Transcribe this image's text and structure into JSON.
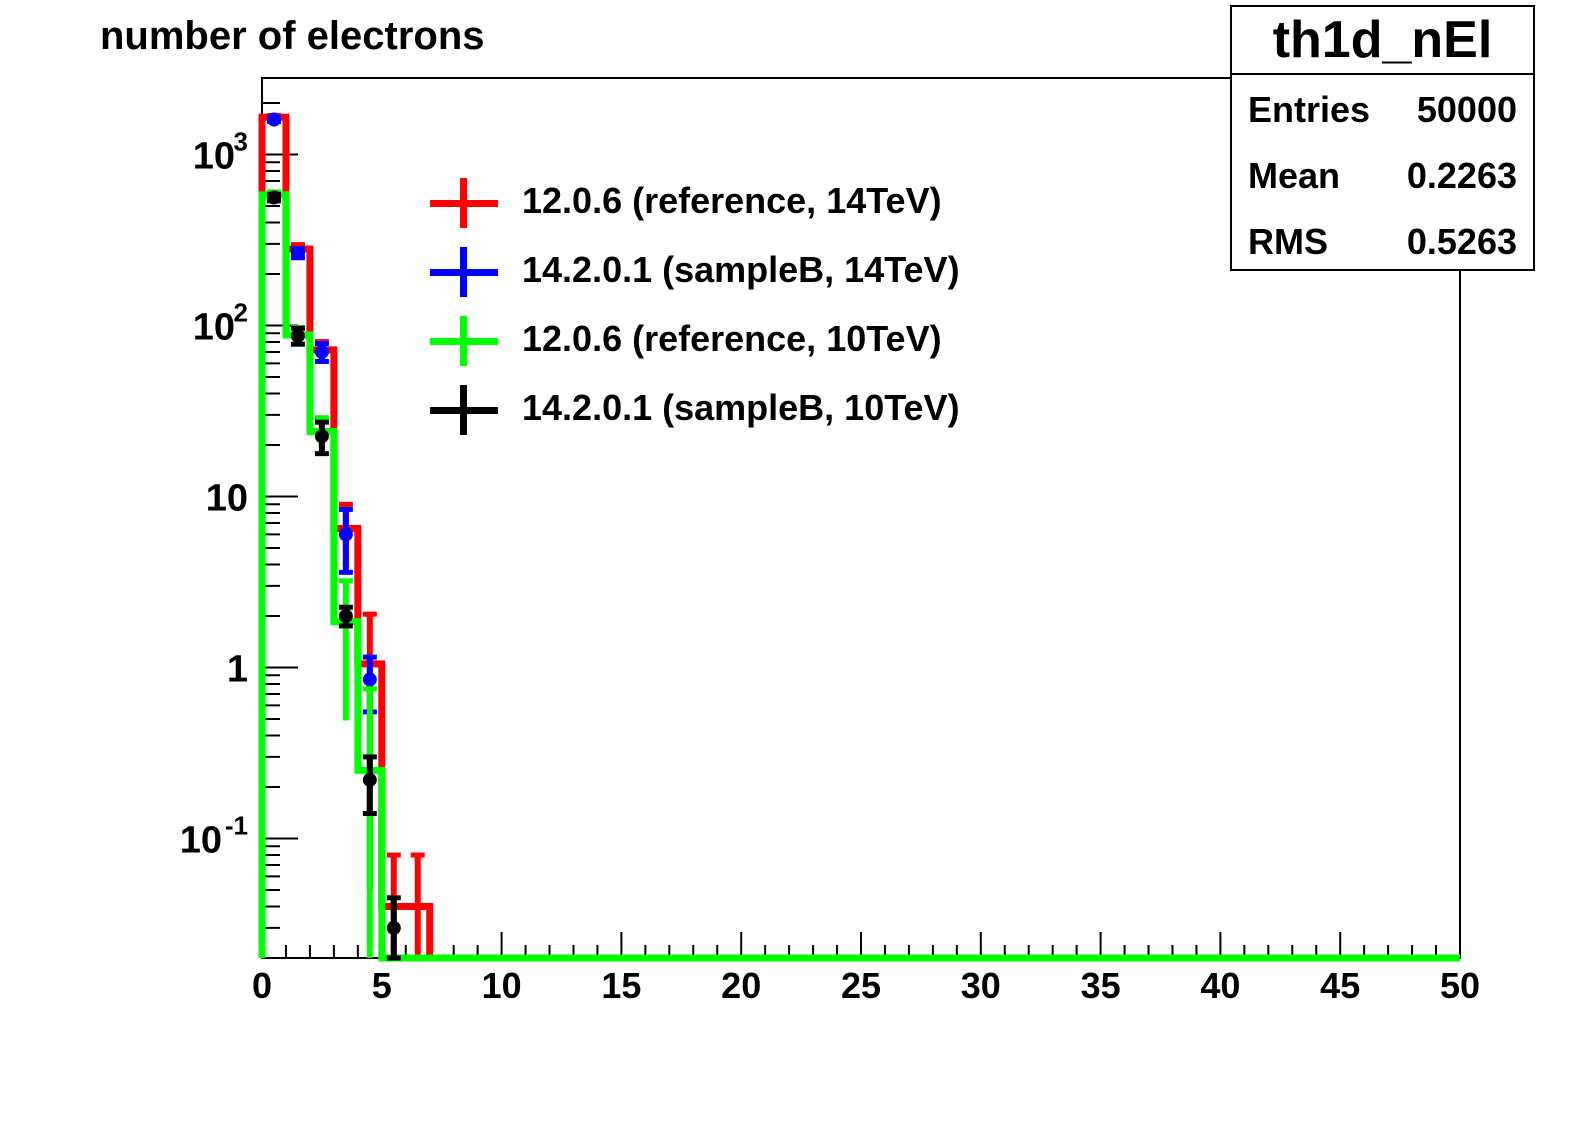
{
  "chart_data": {
    "type": "histogram",
    "title": "number of electrons",
    "xlim": [
      0,
      50
    ],
    "ylim": [
      0.02,
      2800
    ],
    "ylog": true,
    "xticks": [
      "0",
      "5",
      "10",
      "15",
      "20",
      "25",
      "30",
      "35",
      "40",
      "45",
      "50"
    ],
    "yticks": [
      {
        "label": "10",
        "sup": "3",
        "value": 1000
      },
      {
        "label": "10",
        "sup": "2",
        "value": 100
      },
      {
        "label": "10",
        "sup": "",
        "value": 10
      },
      {
        "label": "1",
        "sup": "",
        "value": 1
      },
      {
        "label": "10",
        "sup": "-1",
        "value": 0.1
      }
    ],
    "bin_edges": [
      0,
      1,
      2,
      3,
      4,
      5,
      6,
      7
    ],
    "series": [
      {
        "name": "12.0.6 (reference, 14TeV)",
        "color": "#ff0000",
        "style": "line",
        "values": [
          1650,
          280,
          72,
          6.5,
          1.05,
          0.04,
          0.04
        ],
        "errors": [
          40,
          17,
          8.5,
          2.5,
          1.0,
          0.04,
          0.04
        ]
      },
      {
        "name": "14.2.0.1 (sampleB, 14TeV)",
        "color": "#0000ff",
        "style": "points",
        "values": [
          1600,
          265,
          70,
          6.0,
          0.85,
          0,
          0
        ],
        "errors": [
          40,
          16,
          8.4,
          2.4,
          0.3,
          0,
          0
        ]
      },
      {
        "name": "12.0.6 (reference, 10TeV)",
        "color": "#00ff00",
        "style": "line",
        "values": [
          580,
          88,
          24,
          1.85,
          0.25,
          0.02,
          0.02
        ],
        "errors": [
          24,
          9.4,
          4.9,
          1.36,
          0.5,
          0,
          0
        ]
      },
      {
        "name": "14.2.0.1 (sampleB, 10TeV)",
        "color": "#000000",
        "style": "points",
        "values": [
          560,
          87,
          22.5,
          2.0,
          0.22,
          0.03,
          0
        ],
        "errors": [
          24,
          9.3,
          4.7,
          0.25,
          0.08,
          0.015,
          0
        ]
      }
    ]
  },
  "stats": {
    "name": "th1d_nEl",
    "rows": [
      {
        "label": "Entries",
        "value": "50000"
      },
      {
        "label": "Mean",
        "value": "0.2263"
      },
      {
        "label": "RMS",
        "value": "0.5263"
      }
    ]
  }
}
